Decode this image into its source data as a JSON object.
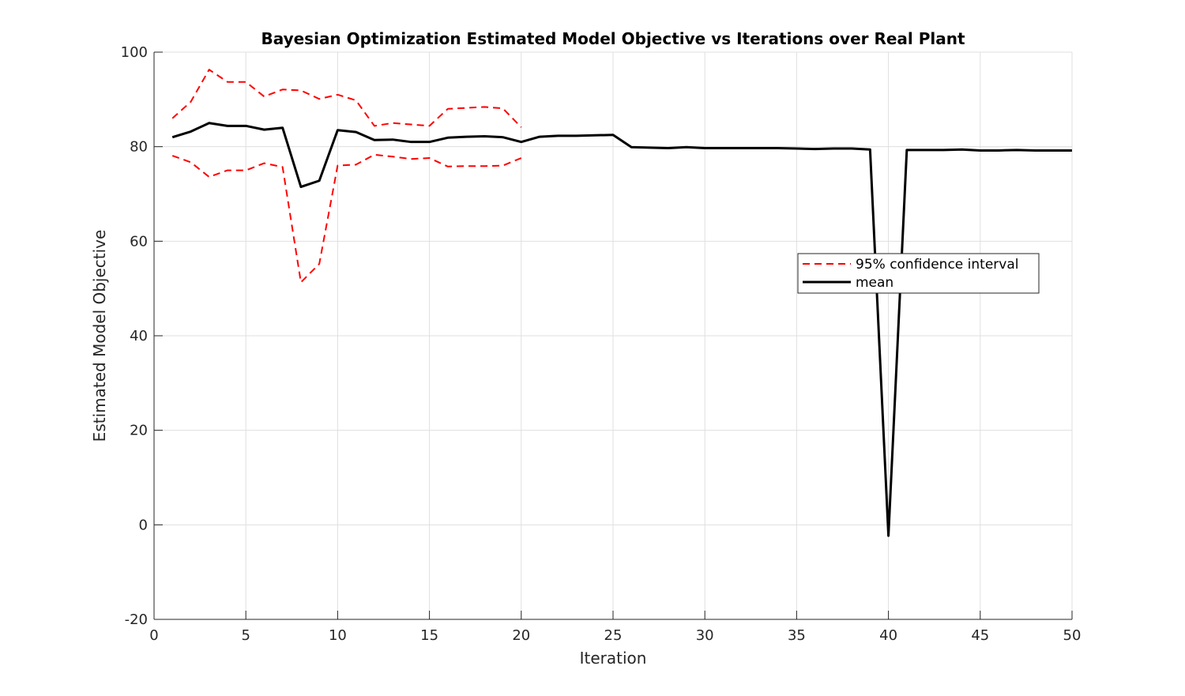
{
  "chart_data": {
    "type": "line",
    "title": "Bayesian Optimization Estimated Model Objective vs Iterations over Real Plant",
    "xlabel": "Iteration",
    "ylabel": "Estimated Model Objective",
    "xlim": [
      0,
      50
    ],
    "ylim": [
      -20,
      100
    ],
    "xticks": [
      0,
      5,
      10,
      15,
      20,
      25,
      30,
      35,
      40,
      45,
      50
    ],
    "yticks": [
      -20,
      0,
      20,
      40,
      60,
      80,
      100
    ],
    "grid": true,
    "legend_position": "right",
    "series": [
      {
        "name": "95% confidence interval",
        "role": "upper",
        "color": "#ff0000",
        "style": "dashed",
        "x": [
          1,
          2,
          3,
          4,
          5,
          6,
          7,
          8,
          9,
          10,
          11,
          12,
          13,
          14,
          15,
          16,
          17,
          18,
          19,
          20
        ],
        "y": [
          86,
          89.5,
          96.3,
          93.7,
          93.7,
          90.6,
          92.1,
          91.9,
          90.1,
          91.0,
          89.8,
          84.4,
          85.0,
          84.7,
          84.4,
          88.0,
          88.2,
          88.4,
          88.1,
          84.1
        ]
      },
      {
        "name": "95% confidence interval",
        "role": "lower",
        "color": "#ff0000",
        "style": "dashed",
        "x": [
          1,
          2,
          3,
          4,
          5,
          6,
          7,
          8,
          9,
          10,
          11,
          12,
          13,
          14,
          15,
          16,
          17,
          18,
          19,
          20
        ],
        "y": [
          78.1,
          76.7,
          73.6,
          75.0,
          75.0,
          76.5,
          75.7,
          51.3,
          55.2,
          76.0,
          76.2,
          78.3,
          77.9,
          77.4,
          77.6,
          75.8,
          75.9,
          75.9,
          76.0,
          77.6
        ]
      },
      {
        "name": "mean",
        "role": "mean",
        "color": "#000000",
        "style": "solid",
        "x": [
          1,
          2,
          3,
          4,
          5,
          6,
          7,
          8,
          9,
          10,
          11,
          12,
          13,
          14,
          15,
          16,
          17,
          18,
          19,
          20,
          21,
          22,
          23,
          24,
          25,
          26,
          27,
          28,
          29,
          30,
          31,
          32,
          33,
          34,
          35,
          36,
          37,
          38,
          39,
          40,
          41,
          42,
          43,
          44,
          45,
          46,
          47,
          48,
          49,
          50
        ],
        "y": [
          82.0,
          83.2,
          85.0,
          84.4,
          84.4,
          83.6,
          84.0,
          71.5,
          72.8,
          83.5,
          83.1,
          81.4,
          81.5,
          81.0,
          81.0,
          81.9,
          82.1,
          82.2,
          82.0,
          81.0,
          82.1,
          82.3,
          82.3,
          82.4,
          82.5,
          79.9,
          79.8,
          79.7,
          79.9,
          79.7,
          79.7,
          79.7,
          79.7,
          79.7,
          79.6,
          79.5,
          79.6,
          79.6,
          79.4,
          -2.3,
          79.3,
          79.3,
          79.3,
          79.4,
          79.2,
          79.2,
          79.3,
          79.2,
          79.2,
          79.2
        ]
      }
    ],
    "legend": [
      {
        "label": "95% confidence interval",
        "color": "#ff0000",
        "style": "dashed"
      },
      {
        "label": "mean",
        "color": "#000000",
        "style": "solid"
      }
    ]
  }
}
